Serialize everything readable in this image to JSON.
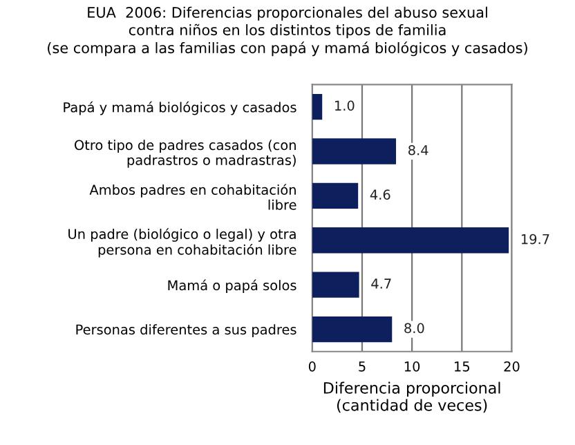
{
  "chart_data": {
    "type": "bar",
    "orientation": "horizontal",
    "title": "EUA  2006: Diferencias proporcionales del abuso sexual\ncontra niños en los distintos tipos de familia\n(se compara a las familias con papá y mamá biológicos y casados)",
    "xlabel": "Diferencia proporcional\n(cantidad de veces)",
    "categories": [
      "Papá y mamá biológicos y casados",
      "Otro tipo de padres casados (con\npadrastros o madrastras)",
      "Ambos padres en cohabitación\nlibre",
      "Un padre (biológico o legal) y otra\npersona en cohabitación libre",
      "Mamá o papá solos",
      "Personas diferentes a sus padres"
    ],
    "values": [
      1.0,
      8.4,
      4.6,
      19.7,
      4.7,
      8.0
    ],
    "value_labels": [
      "1.0",
      "8.4",
      "4.6",
      "19.7",
      "4.7",
      "8.0"
    ],
    "color": "#0d1f5c",
    "xlim": [
      0,
      20
    ],
    "xticks": [
      0,
      5,
      10,
      15,
      20
    ],
    "grid": "x",
    "legend": false
  }
}
